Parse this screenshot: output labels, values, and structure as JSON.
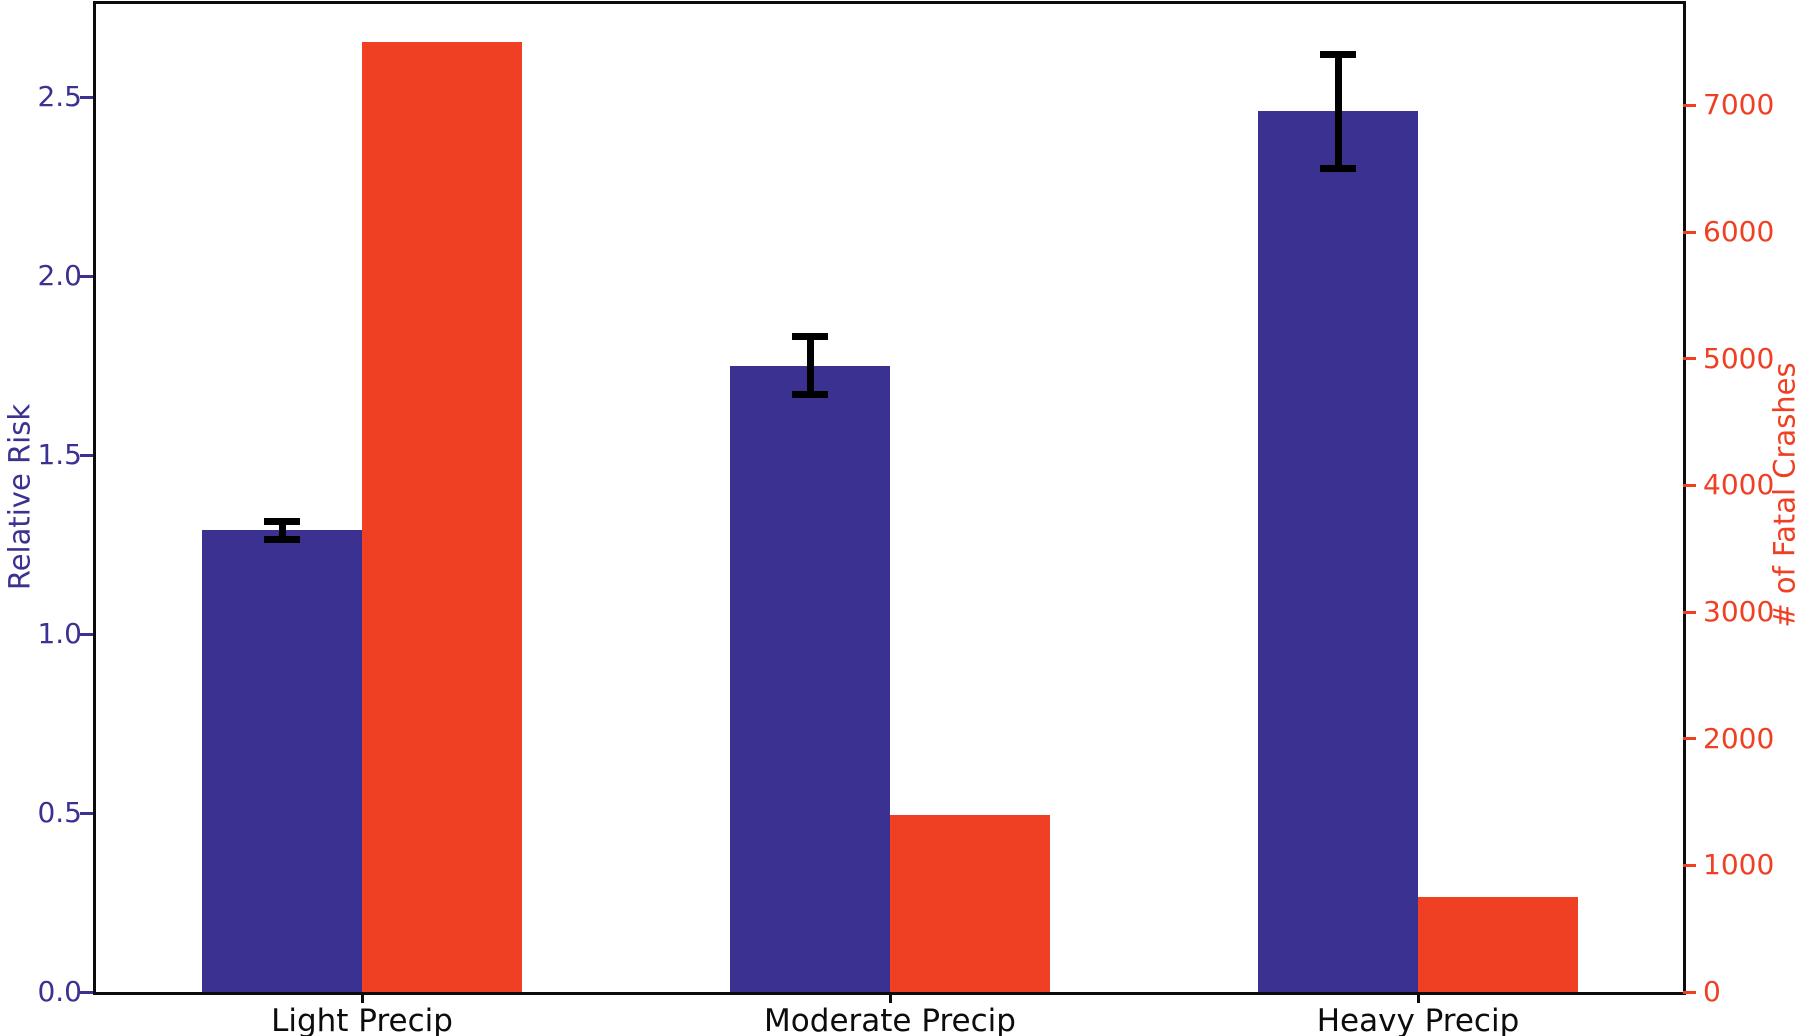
{
  "chart_data": {
    "type": "bar",
    "title": "",
    "categories": [
      "Light Precip",
      "Moderate Precip",
      "Heavy Precip"
    ],
    "series": [
      {
        "name": "Relative Risk",
        "axis": "left",
        "color": "#3A3191",
        "values": [
          1.29,
          1.75,
          2.46
        ],
        "error_bars": [
          0.035,
          0.09,
          0.17
        ]
      },
      {
        "name": "# of Fatal Crashes",
        "axis": "right",
        "color": "#EF4023",
        "values": [
          7500,
          1400,
          750
        ]
      }
    ],
    "left_axis": {
      "label": "Relative Risk",
      "color": "#3A3191",
      "ticks": [
        0.0,
        0.5,
        1.0,
        1.5,
        2.0,
        2.5
      ],
      "tick_labels": [
        "0.0",
        "0.5",
        "1.0",
        "1.5",
        "2.0",
        "2.5"
      ],
      "ylim": [
        0,
        2.76
      ]
    },
    "right_axis": {
      "label": "# of Fatal Crashes",
      "color": "#EF4023",
      "ticks": [
        0,
        1000,
        2000,
        3000,
        4000,
        5000,
        6000,
        7000
      ],
      "tick_labels": [
        "0",
        "1000",
        "2000",
        "3000",
        "4000",
        "5000",
        "6000",
        "7000"
      ],
      "ylim": [
        0,
        7800
      ]
    },
    "x_axis": {
      "tick_label_color": "#0c0c0c"
    },
    "error_bar_color": "#000000",
    "grid": false,
    "legend": null
  }
}
